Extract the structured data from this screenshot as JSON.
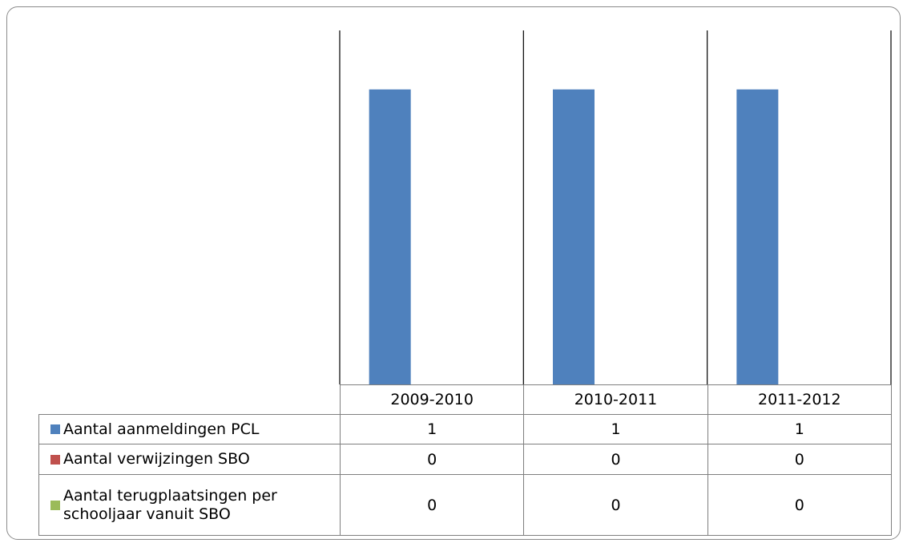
{
  "chart_data": {
    "type": "bar",
    "categories": [
      "2009-2010",
      "2010-2011",
      "2011-2012"
    ],
    "series": [
      {
        "name": "Aantal aanmeldingen PCL",
        "color": "#4f81bd",
        "values": [
          1,
          1,
          1
        ]
      },
      {
        "name": "Aantal verwijzingen SBO",
        "color": "#c0504d",
        "values": [
          0,
          0,
          0
        ]
      },
      {
        "name": "Aantal terugplaatsingen per schooljaar vanuit SBO",
        "color": "#9bbb59",
        "values": [
          0,
          0,
          0
        ]
      }
    ],
    "ylim": [
      0,
      1.2
    ],
    "grid": false
  }
}
